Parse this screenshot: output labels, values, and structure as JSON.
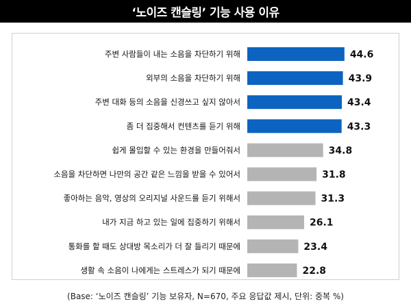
{
  "header": {
    "title": "‘노이즈 캔슬링’ 기능 사용 이유"
  },
  "chart_data": {
    "type": "bar",
    "orientation": "horizontal",
    "title": "‘노이즈 캔슬링’ 기능 사용 이유",
    "categories": [
      "주변 사람들이 내는 소음을 차단하기 위해",
      "외부의 소음을 차단하기 위해",
      "주변 대화 등의 소음을 신경쓰고 싶지 않아서",
      "좀 더 집중해서 컨텐츠를 듣기 위해",
      "쉽게 몰입할 수 있는 환경을 만들어줘서",
      "소음을 차단하면 나만의 공간 같은 느낌을 받을 수 있어서",
      "좋아하는 음악, 영상의 오리지널 사운드를 듣기 위해서",
      "내가 지금 하고 있는 일에 집중하기 위해서",
      "통화를 할 때도 상대방 목소리가 더 잘 들리기 때문에",
      "생활 속 소음이 나에게는 스트레스가 되기 때문에"
    ],
    "values": [
      44.6,
      43.9,
      43.4,
      43.3,
      34.8,
      31.8,
      31.3,
      26.1,
      23.4,
      22.8
    ],
    "value_labels": [
      "44.6",
      "43.9",
      "43.4",
      "43.3",
      "34.8",
      "31.8",
      "31.3",
      "26.1",
      "23.4",
      "22.8"
    ],
    "highlight_count": 4,
    "colors": {
      "highlight": "#0c64c0",
      "normal": "#b4b4b4"
    },
    "grid": false,
    "legend": "none"
  },
  "footnote": "(Base: ‘노이즈 캔슬링’ 기능 보유자, N=670, 주요 응답값 제시, 단위: 중복 %)"
}
